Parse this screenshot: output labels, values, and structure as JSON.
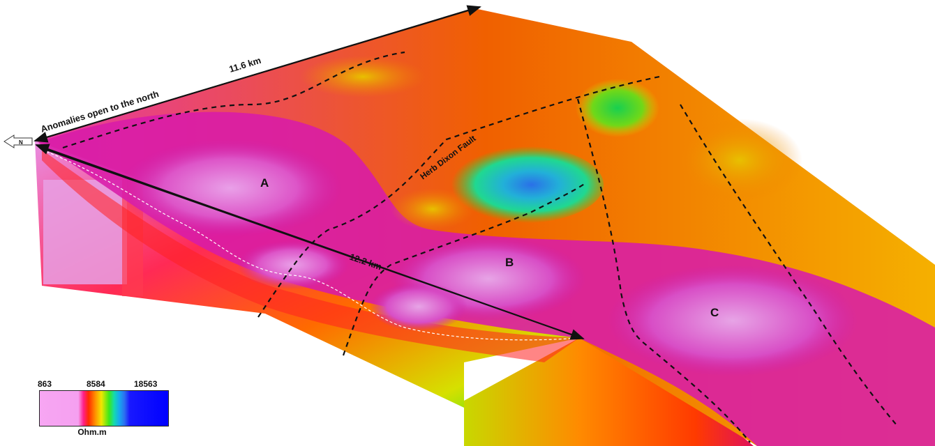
{
  "annotations": {
    "width_label": "11.6 km",
    "length_label": "12.2 km",
    "open_north": "Anomalies open to the north",
    "north_arrow": "N",
    "fault_label": "Herb Dixon Fault"
  },
  "zones": {
    "a": "A",
    "b": "B",
    "c": "C"
  },
  "legend": {
    "min": "863",
    "mid": "8584",
    "max": "18563",
    "unit": "Ohm.m",
    "colors": [
      "#f7a6f3",
      "#ff1f8a",
      "#ff2a00",
      "#ff8c00",
      "#f2e600",
      "#3ce81a",
      "#14d9b0",
      "#16a8f0",
      "#2c6ff0",
      "#0000ff"
    ]
  }
}
